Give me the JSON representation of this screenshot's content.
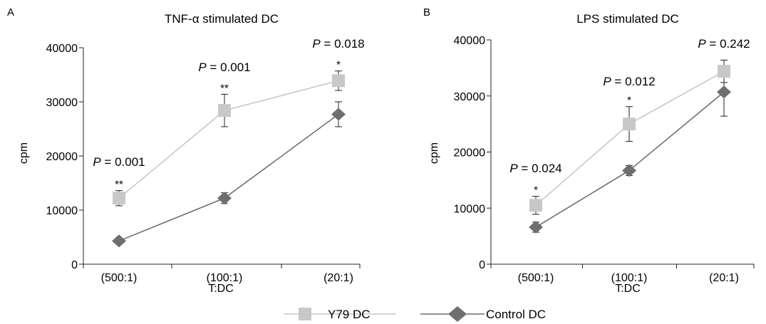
{
  "legend": [
    {
      "label": "Y79 DC",
      "color": "#c8c8c8",
      "marker": "square"
    },
    {
      "label": "Control DC",
      "color": "#6e6e6e",
      "marker": "diamond"
    }
  ],
  "chart_data": [
    {
      "type": "line",
      "panel_label": "A",
      "title": "TNF-α stimulated DC",
      "xlabel": "T:DC",
      "ylabel": "cpm",
      "categories": [
        "(500:1)",
        "(100:1)",
        "(20:1)"
      ],
      "ylim": [
        0,
        40000
      ],
      "yticks": [
        0,
        10000,
        20000,
        30000,
        40000
      ],
      "series": [
        {
          "name": "Y79 DC",
          "color": "#c8c8c8",
          "marker": "square",
          "values": [
            12200,
            28400,
            33900
          ],
          "errors": [
            1400,
            3000,
            1800
          ]
        },
        {
          "name": "Control DC",
          "color": "#6e6e6e",
          "marker": "diamond",
          "values": [
            4300,
            12200,
            27700
          ],
          "errors": [
            0,
            1000,
            2300
          ]
        }
      ],
      "annotations": [
        {
          "category_index": 0,
          "p_prefix": "P",
          "p_value": "= 0.001",
          "stars": "**"
        },
        {
          "category_index": 1,
          "p_prefix": "P",
          "p_value": "= 0.001",
          "stars": "**"
        },
        {
          "category_index": 2,
          "p_prefix": "P",
          "p_value": "= 0.018",
          "stars": "*"
        }
      ]
    },
    {
      "type": "line",
      "panel_label": "B",
      "title": "LPS stimulated DC",
      "xlabel": "T:DC",
      "ylabel": "cpm",
      "categories": [
        "(500:1)",
        "(100:1)",
        "(20:1)"
      ],
      "ylim": [
        0,
        40000
      ],
      "yticks": [
        0,
        10000,
        20000,
        30000,
        40000
      ],
      "series": [
        {
          "name": "Y79 DC",
          "color": "#c8c8c8",
          "marker": "square",
          "values": [
            10500,
            25000,
            34400
          ],
          "errors": [
            1600,
            3100,
            2000
          ]
        },
        {
          "name": "Control DC",
          "color": "#6e6e6e",
          "marker": "diamond",
          "values": [
            6600,
            16700,
            30700
          ],
          "errors": [
            900,
            900,
            4300
          ]
        }
      ],
      "annotations": [
        {
          "category_index": 0,
          "p_prefix": "P",
          "p_value": "= 0.024",
          "stars": "*"
        },
        {
          "category_index": 1,
          "p_prefix": "P",
          "p_value": "= 0.012",
          "stars": "*"
        },
        {
          "category_index": 2,
          "p_prefix": "P",
          "p_value": "= 0.242",
          "stars": ""
        }
      ]
    }
  ]
}
